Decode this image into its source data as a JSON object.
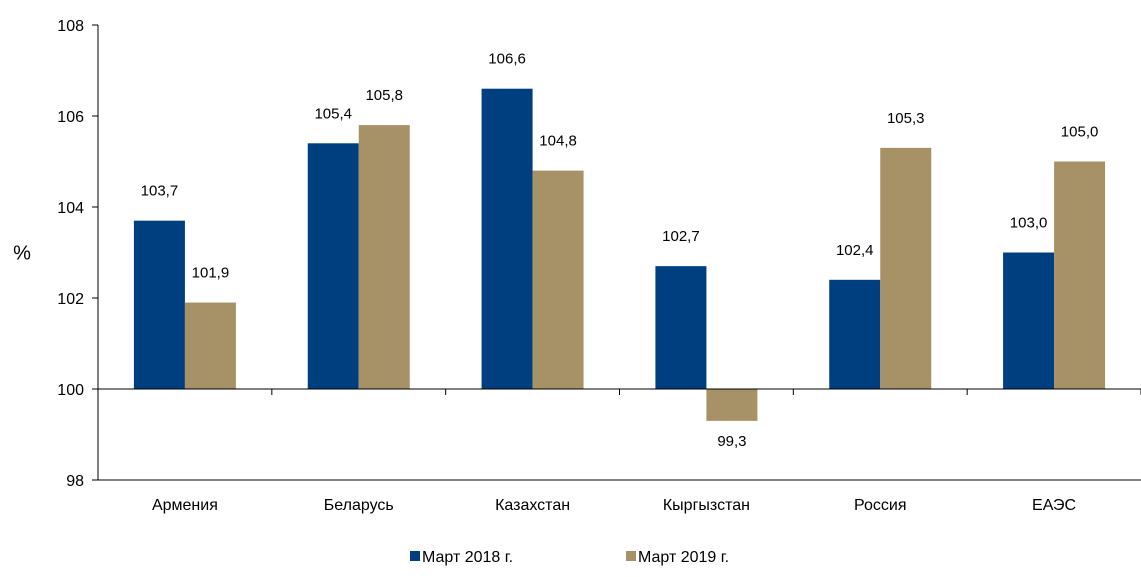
{
  "chart_data": {
    "type": "bar",
    "categories": [
      "Армения",
      "Беларусь",
      "Казахстан",
      "Кыргызстан",
      "Россия",
      "ЕАЭС"
    ],
    "series": [
      {
        "name": "Март 2018 г.",
        "color": "#003F7F",
        "values": [
          103.7,
          105.4,
          106.6,
          102.7,
          102.4,
          103.0
        ],
        "labels": [
          "103,7",
          "105,4",
          "106,6",
          "102,7",
          "102,4",
          "103,0"
        ]
      },
      {
        "name": "Март 2019 г.",
        "color": "#A69266",
        "values": [
          101.9,
          105.8,
          104.8,
          99.3,
          105.3,
          105.0
        ],
        "labels": [
          "101,9",
          "105,8",
          "104,8",
          "99,3",
          "105,3",
          "105,0"
        ]
      }
    ],
    "ylabel": "%",
    "ylim": [
      98,
      108
    ],
    "yticks": [
      98,
      100,
      102,
      104,
      106,
      108
    ],
    "baseline": 100,
    "grid": false,
    "legend": "bottom-center"
  }
}
